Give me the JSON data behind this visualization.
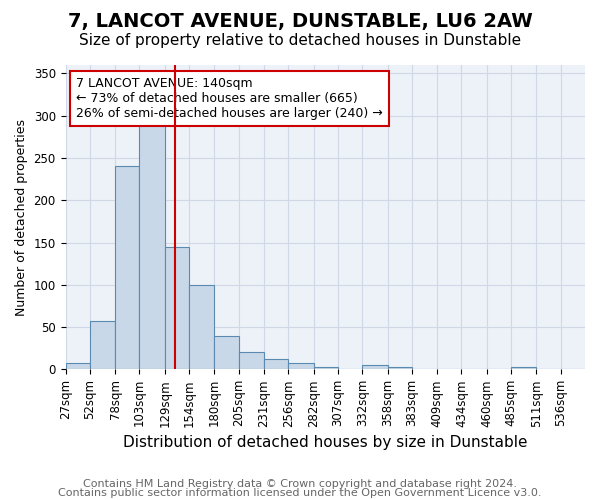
{
  "title": "7, LANCOT AVENUE, DUNSTABLE, LU6 2AW",
  "subtitle": "Size of property relative to detached houses in Dunstable",
  "xlabel": "Distribution of detached houses by size in Dunstable",
  "ylabel": "Number of detached properties",
  "footer_line1": "Contains HM Land Registry data © Crown copyright and database right 2024.",
  "footer_line2": "Contains public sector information licensed under the Open Government Licence v3.0.",
  "bin_labels": [
    "27sqm",
    "52sqm",
    "78sqm",
    "103sqm",
    "129sqm",
    "154sqm",
    "180sqm",
    "205sqm",
    "231sqm",
    "256sqm",
    "282sqm",
    "307sqm",
    "332sqm",
    "358sqm",
    "383sqm",
    "409sqm",
    "434sqm",
    "460sqm",
    "485sqm",
    "511sqm",
    "536sqm"
  ],
  "bar_values": [
    8,
    57,
    240,
    290,
    145,
    100,
    40,
    20,
    12,
    8,
    3,
    0,
    5,
    3,
    0,
    0,
    0,
    0,
    3,
    0,
    0
  ],
  "bar_color": "#c8d8e8",
  "bar_edge_color": "#5a8ab0",
  "red_line_x": 140,
  "bin_edges": [
    27,
    52,
    78,
    103,
    129,
    154,
    180,
    205,
    231,
    256,
    282,
    307,
    332,
    358,
    383,
    409,
    434,
    460,
    485,
    511,
    536,
    561
  ],
  "annotation_text": "7 LANCOT AVENUE: 140sqm\n← 73% of detached houses are smaller (665)\n26% of semi-detached houses are larger (240) →",
  "annotation_box_color": "#ffffff",
  "annotation_box_edge_color": "#cc0000",
  "ylim": [
    0,
    360
  ],
  "yticks": [
    0,
    50,
    100,
    150,
    200,
    250,
    300,
    350
  ],
  "grid_color": "#d0d8e8",
  "background_color": "#edf2f8",
  "title_fontsize": 14,
  "subtitle_fontsize": 11,
  "xlabel_fontsize": 11,
  "ylabel_fontsize": 9,
  "tick_fontsize": 8.5,
  "footer_fontsize": 8,
  "annotation_fontsize": 9
}
